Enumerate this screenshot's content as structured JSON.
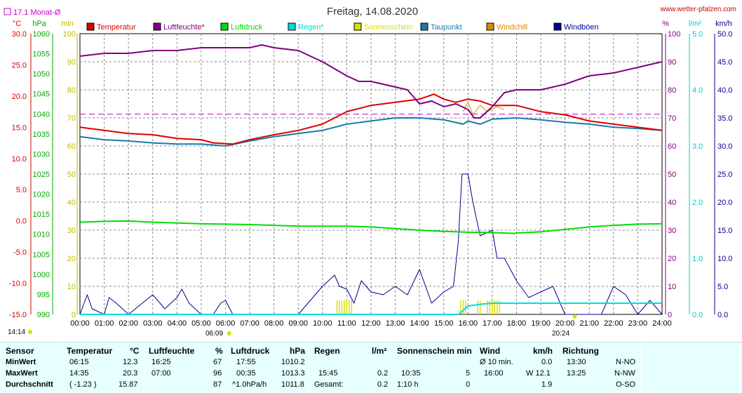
{
  "header": {
    "title": "Freitag, 14.08.2020",
    "site": "www.wetter-pfalzen.com",
    "monat_label": "17.1 Monat-Ø",
    "time_now": "14:14",
    "sunrise": "06:09",
    "sunset": "20:24"
  },
  "axes": {
    "left_units": [
      "°C",
      "hPa",
      "min"
    ],
    "right_units": [
      "%",
      "l/m²",
      "km/h"
    ],
    "temp_ticks": [
      "30.0",
      "25.0",
      "20.0",
      "15.0",
      "10.0",
      "5.0",
      "0.0",
      "-5.0",
      "-10.0",
      "-15.0"
    ],
    "hpa_ticks": [
      "1060",
      "1055",
      "1050",
      "1045",
      "1040",
      "1035",
      "1030",
      "1025",
      "1020",
      "1015",
      "1010",
      "1005",
      "1000",
      "995",
      "990"
    ],
    "min_ticks": [
      "100",
      "90",
      "80",
      "70",
      "60",
      "50",
      "40",
      "30",
      "20",
      "10",
      "0"
    ],
    "pct_ticks": [
      "100",
      "90",
      "80",
      "70",
      "60",
      "50",
      "40",
      "30",
      "20",
      "10",
      "0"
    ],
    "rain_ticks": [
      "5.0",
      "4.0",
      "3.0",
      "2.0",
      "1.0",
      "0.0"
    ],
    "kmh_ticks": [
      "50.0",
      "45.0",
      "40.0",
      "35.0",
      "30.0",
      "25.0",
      "20.0",
      "15.0",
      "10.0",
      "5.0",
      "0.0"
    ],
    "x_ticks": [
      "00:00",
      "01:00",
      "02:00",
      "03:00",
      "04:00",
      "05:00",
      "06:00",
      "07:00",
      "08:00",
      "09:00",
      "10:00",
      "11:00",
      "12:00",
      "13:00",
      "14:00",
      "15:00",
      "16:00",
      "17:00",
      "18:00",
      "19:00",
      "20:00",
      "21:00",
      "22:00",
      "23:00",
      "24:00"
    ]
  },
  "colors": {
    "temperatur": "#dd0000",
    "luftfeuchte": "#800080",
    "luftdruck": "#00dd00",
    "regen": "#00dddd",
    "sonnenschein": "#dddd00",
    "taupunkt": "#1a7aaa",
    "windchill": "#dd8800",
    "windboeen": "#000090",
    "monat": "#cc00cc",
    "grid": "#888888",
    "stats_bg": "#e6ffff"
  },
  "chart_data": {
    "type": "line",
    "x_unit": "hours",
    "xlim": [
      0,
      24
    ],
    "legend": [
      "Temperatur",
      "Luftfeuchte*",
      "Luftdruck",
      "Regen*",
      "Sonnenschein",
      "Taupunkt",
      "Windchill",
      "Windböen"
    ],
    "monat_avg_temp": 17.1,
    "series": [
      {
        "name": "Temperatur",
        "axis": "°C",
        "x": [
          0,
          1,
          2,
          3,
          4,
          5,
          5.5,
          6.3,
          7,
          8,
          9,
          10,
          11,
          12,
          13,
          14,
          14.6,
          15,
          15.5,
          16,
          16.5,
          17,
          18,
          19,
          20,
          21,
          22,
          23,
          24
        ],
        "y": [
          15.0,
          14.5,
          14.0,
          13.8,
          13.2,
          13.0,
          12.5,
          12.3,
          13.0,
          13.8,
          14.5,
          15.5,
          17.5,
          18.5,
          19.0,
          19.5,
          20.3,
          19.5,
          19.0,
          19.5,
          19.2,
          18.5,
          18.5,
          17.5,
          17.0,
          16.0,
          15.5,
          15.0,
          14.5
        ]
      },
      {
        "name": "Luftfeuchte*",
        "axis": "%",
        "x": [
          0,
          1,
          2,
          3,
          4,
          5,
          6,
          7,
          7.5,
          8,
          9,
          10,
          11,
          11.5,
          12,
          13,
          13.5,
          14,
          14.5,
          15,
          15.5,
          16,
          16.25,
          16.5,
          17,
          17.5,
          18,
          19,
          20,
          21,
          22,
          23,
          24
        ],
        "y": [
          92,
          93,
          93,
          94,
          94,
          95,
          95,
          95,
          96,
          95,
          94,
          90,
          85,
          83,
          83,
          81,
          80,
          75,
          76,
          74,
          75,
          73,
          70,
          70,
          74,
          79,
          80,
          80,
          82,
          85,
          86,
          88,
          90
        ]
      },
      {
        "name": "Luftdruck",
        "axis": "hPa",
        "x": [
          0,
          1,
          2,
          3,
          4,
          5,
          6,
          7,
          8,
          9,
          10,
          11,
          12,
          13,
          14,
          15,
          16,
          17,
          17.9,
          18,
          19,
          20,
          21,
          22,
          23,
          24
        ],
        "y": [
          1013.0,
          1013.2,
          1013.3,
          1013.0,
          1012.8,
          1012.6,
          1012.5,
          1012.4,
          1012.2,
          1012.0,
          1012.0,
          1012.0,
          1011.8,
          1011.4,
          1011.0,
          1010.7,
          1010.5,
          1010.4,
          1010.2,
          1010.3,
          1010.6,
          1011.2,
          1011.8,
          1012.2,
          1012.5,
          1012.6
        ]
      },
      {
        "name": "Regen*",
        "axis": "l/m²",
        "x": [
          0,
          15.6,
          15.75,
          16,
          16.5,
          17,
          18,
          20,
          24
        ],
        "y": [
          0,
          0,
          0.05,
          0.15,
          0.18,
          0.2,
          0.2,
          0.2,
          0.2
        ]
      },
      {
        "name": "Taupunkt",
        "axis": "°C",
        "x": [
          0,
          1,
          2,
          3,
          4,
          5,
          6,
          7,
          8,
          9,
          10,
          11,
          12,
          13,
          14,
          15,
          15.8,
          16,
          16.5,
          17,
          18,
          19,
          20,
          21,
          22,
          23,
          24
        ],
        "y": [
          13.5,
          13.0,
          12.8,
          12.5,
          12.3,
          12.3,
          12.0,
          12.8,
          13.5,
          14.0,
          14.5,
          15.5,
          16.0,
          16.5,
          16.5,
          16.2,
          15.5,
          16.0,
          15.5,
          16.3,
          16.5,
          16.2,
          15.8,
          15.5,
          15.0,
          14.8,
          14.5
        ]
      },
      {
        "name": "Windchill",
        "axis": "°C",
        "x": [
          15.8,
          16,
          16.2,
          16.5,
          16.8,
          17.2,
          17.5
        ],
        "y": [
          17.5,
          19.0,
          17.0,
          18.5,
          17.5,
          18.3,
          17.8
        ]
      },
      {
        "name": "Windböen",
        "axis": "km/h",
        "x": [
          0,
          0.3,
          0.5,
          1,
          1.2,
          1.5,
          2,
          3,
          3.5,
          4,
          4.2,
          4.5,
          5,
          5.5,
          5.8,
          6,
          6.3,
          7,
          8,
          9,
          10,
          10.5,
          10.7,
          11,
          11.3,
          11.6,
          12,
          12.5,
          13,
          13.5,
          14,
          14.5,
          15,
          15.4,
          15.6,
          15.75,
          16,
          16.2,
          16.5,
          17,
          17.2,
          17.5,
          18,
          18.5,
          19,
          19.5,
          20,
          21,
          21.5,
          22,
          22.5,
          23,
          23.5,
          24
        ],
        "y": [
          0,
          3.5,
          1,
          0,
          3,
          2,
          0,
          3.5,
          1,
          3,
          4.5,
          2,
          0,
          0,
          2,
          2.5,
          0,
          0,
          0,
          0,
          5,
          7,
          5,
          4.5,
          2,
          6,
          4,
          3.5,
          5,
          3.5,
          8,
          2,
          4,
          5,
          13,
          25,
          25,
          20,
          14,
          15,
          10,
          10,
          6,
          3,
          4,
          5,
          0,
          0,
          0,
          5,
          3.5,
          0,
          2.5,
          0
        ]
      }
    ],
    "sunshine_hours": [
      [
        10.6,
        11.2
      ],
      [
        15.7,
        15.9
      ],
      [
        16.4,
        16.5
      ],
      [
        16.8,
        17.3
      ]
    ]
  },
  "stats": {
    "sensor": {
      "header": "Sensor",
      "rows": [
        "MinWert",
        "MaxWert",
        "Durchschnitt"
      ]
    },
    "temperatur": {
      "header": "Temperatur",
      "unit": "°C",
      "times": [
        "06:15",
        "14:35",
        "( -1.23 )"
      ],
      "values": [
        "12.3",
        "20.3",
        "15.87"
      ]
    },
    "luftfeuchte": {
      "header": "Luftfeuchte",
      "unit": "%",
      "times": [
        "16:25",
        "07:00",
        ""
      ],
      "values": [
        "67",
        "96",
        "87"
      ]
    },
    "luftdruck": {
      "header": "Luftdruck",
      "unit": "hPa",
      "times": [
        "17:55",
        "00:35",
        "^1.0hPa/h"
      ],
      "values": [
        "1010.2",
        "1013.3",
        "1011.8"
      ]
    },
    "regen": {
      "header": "Regen",
      "unit": "l/m²",
      "times": [
        "",
        "15:45",
        "Gesamt:"
      ],
      "values": [
        "",
        "0.2",
        "0.2"
      ]
    },
    "sonnenschein": {
      "header": "Sonnenschein min",
      "times": [
        "",
        "10:35",
        "1:10 h"
      ],
      "values": [
        "",
        "5",
        "0"
      ]
    },
    "wind": {
      "header": "Wind",
      "unit": "km/h",
      "times": [
        "Ø 10 min.",
        "16:00",
        ""
      ],
      "values": [
        "0.0",
        "W 12.1",
        "1.9"
      ]
    },
    "richtung": {
      "header": "Richtung",
      "times": [
        "13:30",
        "13:25",
        ""
      ],
      "values": [
        "N-NO",
        "N-NW",
        "O-SO"
      ]
    }
  }
}
